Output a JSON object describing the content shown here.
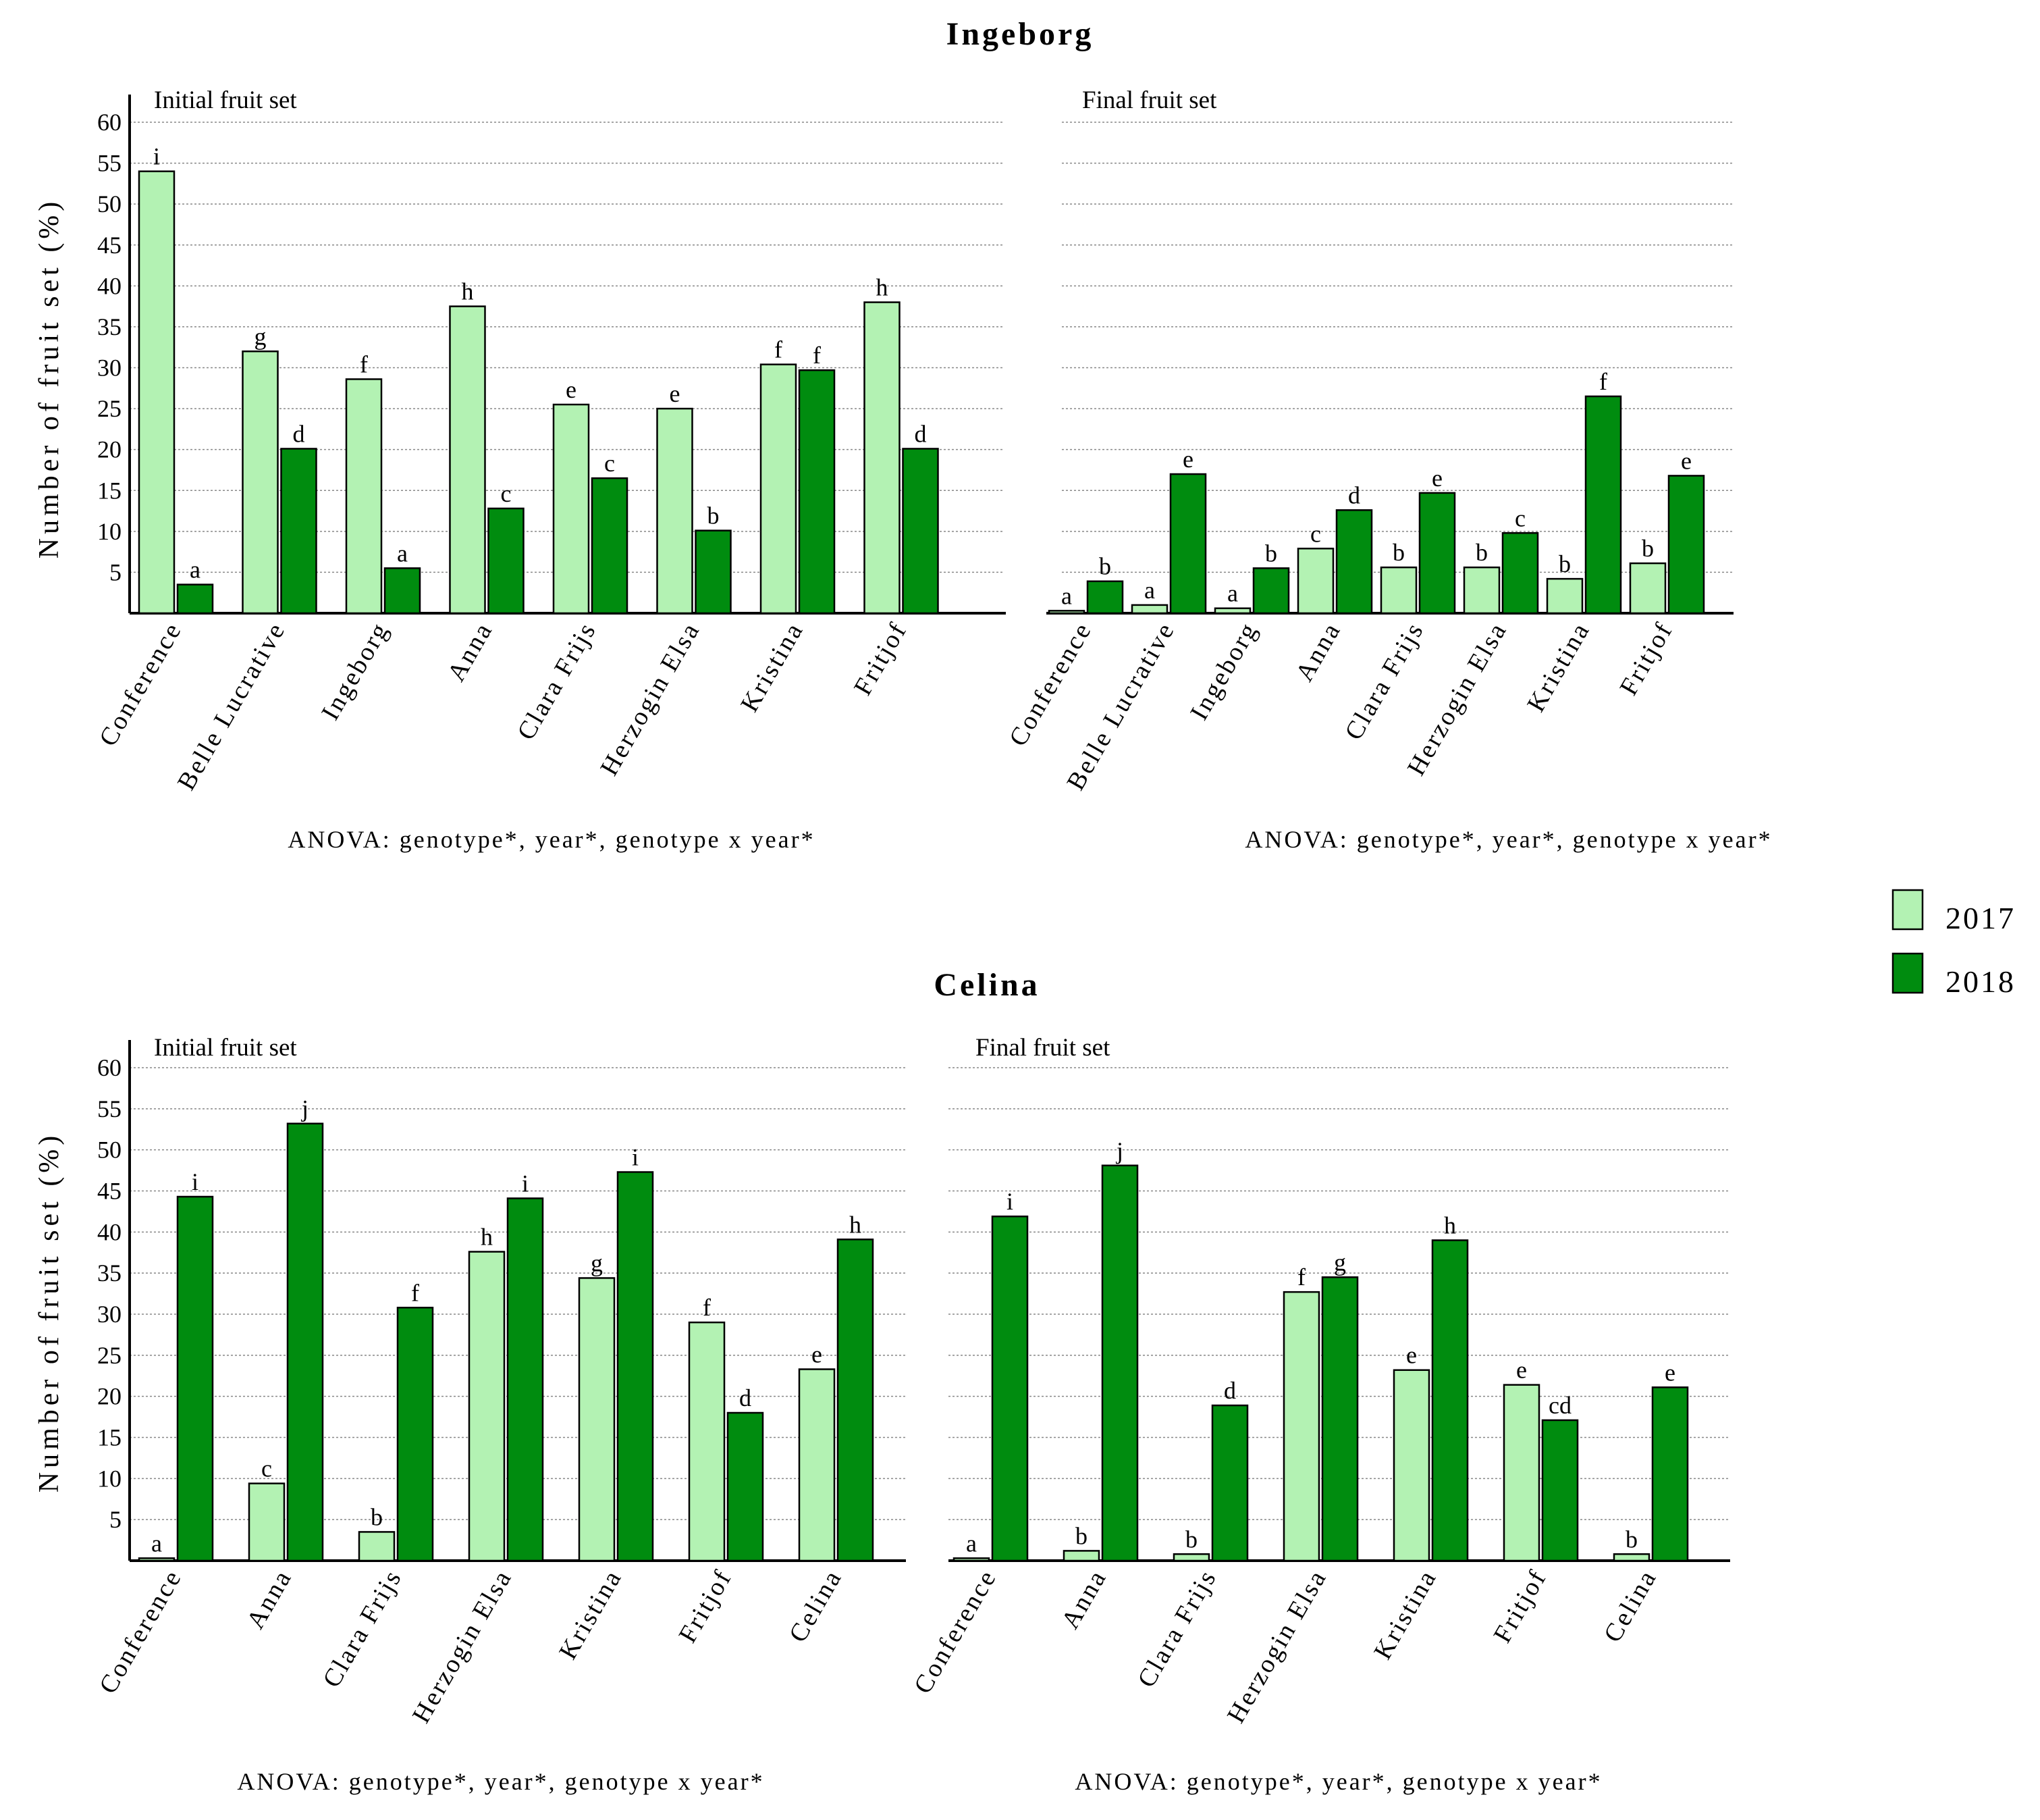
{
  "colors": {
    "y2017": "#b3f2b3",
    "y2018": "#008c0f"
  },
  "ylabel": "Number of fruit set (%)",
  "legend": [
    {
      "label": "2017",
      "color": "#b3f2b3"
    },
    {
      "label": "2018",
      "color": "#008c0f"
    }
  ],
  "sections": [
    {
      "title": "Ingeborg"
    },
    {
      "title": "Celina"
    }
  ],
  "chart_data": [
    {
      "type": "bar",
      "section": "Ingeborg",
      "title": "Initial fruit set",
      "ylim": [
        0,
        62
      ],
      "yticks": [
        5,
        10,
        15,
        20,
        25,
        30,
        35,
        40,
        45,
        50,
        55,
        60
      ],
      "show_ticks": true,
      "categories": [
        "Conference",
        "Belle Lucrative",
        "Ingeborg",
        "Anna",
        "Clara Frijs",
        "Herzogin Elsa",
        "Kristina",
        "Fritjof"
      ],
      "series": [
        {
          "name": "2017",
          "values": [
            54,
            32,
            28.6,
            37.5,
            25.5,
            25,
            30.4,
            38
          ],
          "letters": [
            "i",
            "g",
            "f",
            "h",
            "e",
            "e",
            "f",
            "h"
          ]
        },
        {
          "name": "2018",
          "values": [
            3.5,
            20.1,
            5.5,
            12.8,
            16.5,
            10.1,
            29.7,
            20.1
          ],
          "letters": [
            "a",
            "d",
            "a",
            "c",
            "c",
            "b",
            "f",
            "d"
          ]
        }
      ],
      "anova": "ANOVA: genotype*, year*, genotype x year*"
    },
    {
      "type": "bar",
      "section": "Ingeborg",
      "title": "Final fruit set",
      "ylim": [
        0,
        62
      ],
      "yticks": [
        5,
        10,
        15,
        20,
        25,
        30,
        35,
        40,
        45,
        50,
        55,
        60
      ],
      "show_ticks": false,
      "categories": [
        "Conference",
        "Belle Lucrative",
        "Ingeborg",
        "Anna",
        "Clara Frijs",
        "Herzogin Elsa",
        "Kristina",
        "Fritjof"
      ],
      "series": [
        {
          "name": "2017",
          "values": [
            0.3,
            1,
            0.6,
            7.9,
            5.6,
            5.6,
            4.2,
            6.1
          ],
          "letters": [
            "a",
            "a",
            "a",
            "c",
            "b",
            "b",
            "b",
            "b"
          ]
        },
        {
          "name": "2018",
          "values": [
            3.9,
            17,
            5.5,
            12.6,
            14.7,
            9.8,
            26.5,
            16.8
          ],
          "letters": [
            "b",
            "e",
            "b",
            "d",
            "e",
            "c",
            "f",
            "e"
          ]
        }
      ],
      "anova": "ANOVA: genotype*, year*, genotype x year*"
    },
    {
      "type": "bar",
      "section": "Celina",
      "title": "Initial fruit set",
      "ylim": [
        0,
        62
      ],
      "yticks": [
        5,
        10,
        15,
        20,
        25,
        30,
        35,
        40,
        45,
        50,
        55,
        60
      ],
      "show_ticks": true,
      "categories": [
        "Conference",
        "Anna",
        "Clara Frijs",
        "Herzogin Elsa",
        "Kristina",
        "Fritjof",
        "Celina"
      ],
      "series": [
        {
          "name": "2017",
          "values": [
            0.3,
            9.4,
            3.5,
            37.6,
            34.4,
            29,
            23.3
          ],
          "letters": [
            "a",
            "c",
            "b",
            "h",
            "g",
            "f",
            "e"
          ]
        },
        {
          "name": "2018",
          "values": [
            44.3,
            53.2,
            30.8,
            44.1,
            47.3,
            18,
            39.1
          ],
          "letters": [
            "i",
            "j",
            "f",
            "i",
            "i",
            "d",
            "h"
          ]
        }
      ],
      "anova": "ANOVA: genotype*, year*, genotype x year*"
    },
    {
      "type": "bar",
      "section": "Celina",
      "title": "Final fruit set",
      "ylim": [
        0,
        62
      ],
      "yticks": [
        5,
        10,
        15,
        20,
        25,
        30,
        35,
        40,
        45,
        50,
        55,
        60
      ],
      "show_ticks": false,
      "categories": [
        "Conference",
        "Anna",
        "Clara Frijs",
        "Herzogin Elsa",
        "Kristina",
        "Fritjof",
        "Celina"
      ],
      "series": [
        {
          "name": "2017",
          "values": [
            0.3,
            1.2,
            0.8,
            32.7,
            23.2,
            21.4,
            0.8
          ],
          "letters": [
            "a",
            "b",
            "b",
            "f",
            "e",
            "e",
            "b"
          ]
        },
        {
          "name": "2018",
          "values": [
            41.9,
            48.1,
            18.9,
            34.5,
            39,
            17.1,
            21.1
          ],
          "letters": [
            "i",
            "j",
            "d",
            "g",
            "h",
            "cd",
            "e"
          ]
        }
      ],
      "anova": "ANOVA: genotype*, year*, genotype x year*"
    }
  ]
}
